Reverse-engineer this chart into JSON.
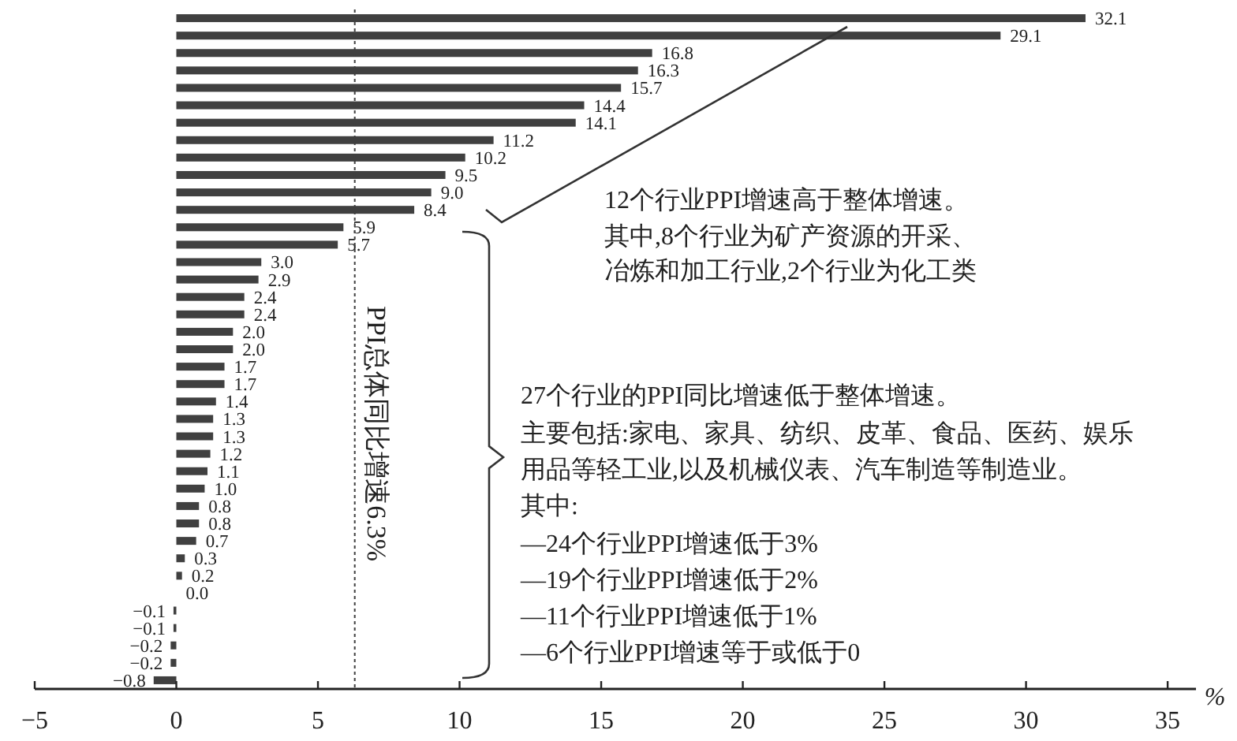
{
  "chart_data": {
    "type": "bar",
    "orientation": "horizontal",
    "xlabel": "%",
    "categories": [
      null,
      null,
      null,
      null,
      null,
      null,
      null,
      null,
      null,
      null,
      null,
      null,
      null,
      null,
      null,
      null,
      null,
      null,
      null,
      null,
      null,
      null,
      null,
      null,
      null,
      null,
      null,
      null,
      null,
      null,
      null,
      null,
      null,
      null,
      null,
      null,
      null,
      null,
      null
    ],
    "values": [
      32.1,
      29.1,
      16.8,
      16.3,
      15.7,
      14.4,
      14.1,
      11.2,
      10.2,
      9.5,
      9.0,
      8.4,
      5.9,
      5.7,
      3.0,
      2.9,
      2.4,
      2.4,
      2.0,
      2.0,
      1.7,
      1.7,
      1.4,
      1.3,
      1.3,
      1.2,
      1.1,
      1.0,
      0.8,
      0.8,
      0.7,
      0.3,
      0.2,
      0.0,
      -0.1,
      -0.1,
      -0.2,
      -0.2,
      -0.8
    ],
    "value_labels": [
      "32.1",
      "29.1",
      "16.8",
      "16.3",
      "15.7",
      "14.4",
      "14.1",
      "11.2",
      "10.2",
      "9.5",
      "9.0",
      "8.4",
      "5.9",
      "5.7",
      "3.0",
      "2.9",
      "2.4",
      "2.4",
      "2.0",
      "2.0",
      "1.7",
      "1.7",
      "1.4",
      "1.3",
      "1.3",
      "1.2",
      "1.1",
      "1.0",
      "0.8",
      "0.8",
      "0.7",
      "0.3",
      "0.2",
      "0.0",
      "−0.1",
      "−0.1",
      "−0.2",
      "−0.2",
      "−0.8"
    ],
    "color": "#404040",
    "xlim": [
      -5,
      36
    ],
    "xticks": [
      {
        "value": -5,
        "label": "−5"
      },
      0,
      5,
      10,
      15,
      20,
      25,
      30,
      35
    ],
    "ref_lines": [
      {
        "axis": "x",
        "value": 6.3,
        "label": "PPI总体同比增速6.3%",
        "line_style": "dotted",
        "color": "#404040"
      }
    ],
    "annotations": [
      "12个行业PPI增速高于整体增速。",
      "其中,8个行业为矿产资源的开采、",
      "冶炼和加工行业,2个行业为化工类",
      "27个行业的PPI同比增速低于整体增速。",
      "主要包括:家电、家具、纺织、皮革、食品、医药、娱乐",
      "用品等轻工业,以及机械仪表、汽车制造等制造业。",
      "其中:",
      "—24个行业PPI增速低于3%",
      "—19个行业PPI增速低于2%",
      "—11个行业PPI增速低于1%",
      "—6个行业PPI增速等于或低于0"
    ]
  }
}
